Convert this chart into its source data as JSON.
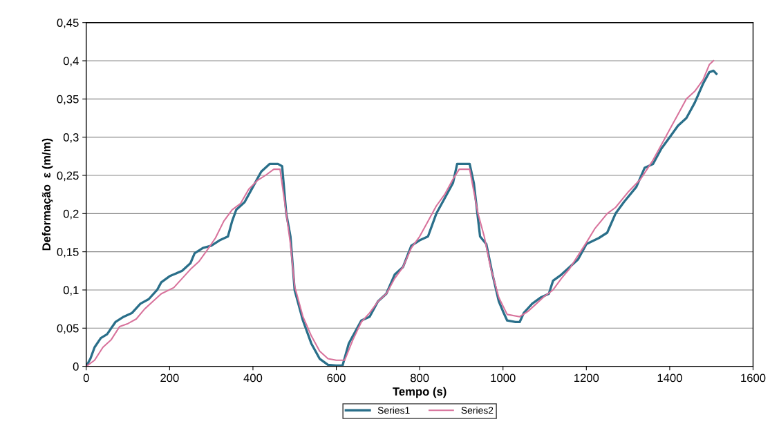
{
  "chart_data": {
    "type": "line",
    "xlabel": "Tempo (s)",
    "ylabel": "Deformação  ε (m/m)",
    "xlim": [
      0,
      1600
    ],
    "xticks": [
      0,
      200,
      400,
      600,
      800,
      1000,
      1200,
      1400,
      1600
    ],
    "ylim": [
      0,
      0.45
    ],
    "yticks": [
      {
        "value": 0,
        "label": "0"
      },
      {
        "value": 0.05,
        "label": "0,05"
      },
      {
        "value": 0.1,
        "label": "0,1"
      },
      {
        "value": 0.15,
        "label": "0,15"
      },
      {
        "value": 0.2,
        "label": "0,2"
      },
      {
        "value": 0.25,
        "label": "0,25"
      },
      {
        "value": 0.3,
        "label": "0,3"
      },
      {
        "value": 0.35,
        "label": "0,35"
      },
      {
        "value": 0.4,
        "label": "0,4"
      },
      {
        "value": 0.45,
        "label": "0,45"
      }
    ],
    "grid": "y",
    "legend": "bottom",
    "marker": "none",
    "line_style": "solid",
    "series": [
      {
        "name": "Series1",
        "color": "#2a6f8a",
        "x": [
          0,
          10,
          20,
          35,
          50,
          70,
          90,
          110,
          130,
          150,
          170,
          180,
          200,
          230,
          250,
          260,
          280,
          300,
          320,
          340,
          350,
          360,
          380,
          400,
          420,
          440,
          460,
          470,
          480,
          490,
          500,
          520,
          540,
          560,
          580,
          600,
          615,
          630,
          660,
          680,
          700,
          720,
          740,
          760,
          780,
          800,
          820,
          840,
          860,
          880,
          890,
          920,
          930,
          945,
          960,
          975,
          990,
          1000,
          1010,
          1030,
          1040,
          1050,
          1070,
          1090,
          1110,
          1120,
          1140,
          1160,
          1180,
          1200,
          1230,
          1250,
          1270,
          1290,
          1320,
          1340,
          1360,
          1380,
          1400,
          1420,
          1440,
          1460,
          1480,
          1495,
          1505,
          1512
        ],
        "values": [
          0,
          0.01,
          0.025,
          0.037,
          0.042,
          0.058,
          0.065,
          0.07,
          0.082,
          0.088,
          0.1,
          0.11,
          0.118,
          0.125,
          0.135,
          0.148,
          0.155,
          0.158,
          0.165,
          0.17,
          0.19,
          0.205,
          0.215,
          0.235,
          0.255,
          0.265,
          0.265,
          0.262,
          0.2,
          0.17,
          0.1,
          0.06,
          0.03,
          0.01,
          0.002,
          0.001,
          0.001,
          0.03,
          0.06,
          0.065,
          0.085,
          0.095,
          0.12,
          0.13,
          0.158,
          0.165,
          0.17,
          0.2,
          0.22,
          0.24,
          0.265,
          0.265,
          0.24,
          0.17,
          0.16,
          0.12,
          0.085,
          0.072,
          0.06,
          0.058,
          0.058,
          0.07,
          0.082,
          0.09,
          0.095,
          0.112,
          0.12,
          0.13,
          0.14,
          0.16,
          0.168,
          0.175,
          0.2,
          0.215,
          0.235,
          0.26,
          0.265,
          0.285,
          0.3,
          0.315,
          0.325,
          0.345,
          0.37,
          0.385,
          0.387,
          0.383
        ]
      },
      {
        "name": "Series2",
        "color": "#d8739c",
        "x": [
          0,
          20,
          40,
          60,
          80,
          100,
          120,
          140,
          160,
          180,
          210,
          230,
          250,
          270,
          290,
          310,
          330,
          350,
          370,
          390,
          410,
          430,
          450,
          465,
          480,
          490,
          500,
          520,
          540,
          560,
          580,
          600,
          620,
          640,
          660,
          680,
          700,
          720,
          740,
          760,
          780,
          800,
          820,
          840,
          860,
          880,
          895,
          920,
          940,
          955,
          970,
          990,
          1010,
          1040,
          1060,
          1080,
          1100,
          1120,
          1140,
          1160,
          1180,
          1200,
          1220,
          1250,
          1270,
          1300,
          1330,
          1360,
          1380,
          1400,
          1420,
          1440,
          1460,
          1480,
          1495,
          1505
        ],
        "values": [
          0,
          0.008,
          0.025,
          0.035,
          0.052,
          0.056,
          0.062,
          0.075,
          0.085,
          0.095,
          0.103,
          0.115,
          0.127,
          0.137,
          0.152,
          0.168,
          0.19,
          0.205,
          0.213,
          0.232,
          0.243,
          0.25,
          0.258,
          0.258,
          0.2,
          0.16,
          0.105,
          0.065,
          0.04,
          0.02,
          0.01,
          0.008,
          0.008,
          0.035,
          0.058,
          0.07,
          0.085,
          0.095,
          0.115,
          0.13,
          0.155,
          0.17,
          0.19,
          0.21,
          0.225,
          0.245,
          0.258,
          0.258,
          0.2,
          0.17,
          0.13,
          0.09,
          0.068,
          0.065,
          0.072,
          0.082,
          0.092,
          0.1,
          0.115,
          0.128,
          0.145,
          0.162,
          0.18,
          0.2,
          0.208,
          0.228,
          0.245,
          0.27,
          0.29,
          0.31,
          0.33,
          0.35,
          0.36,
          0.375,
          0.395,
          0.4
        ]
      }
    ]
  }
}
